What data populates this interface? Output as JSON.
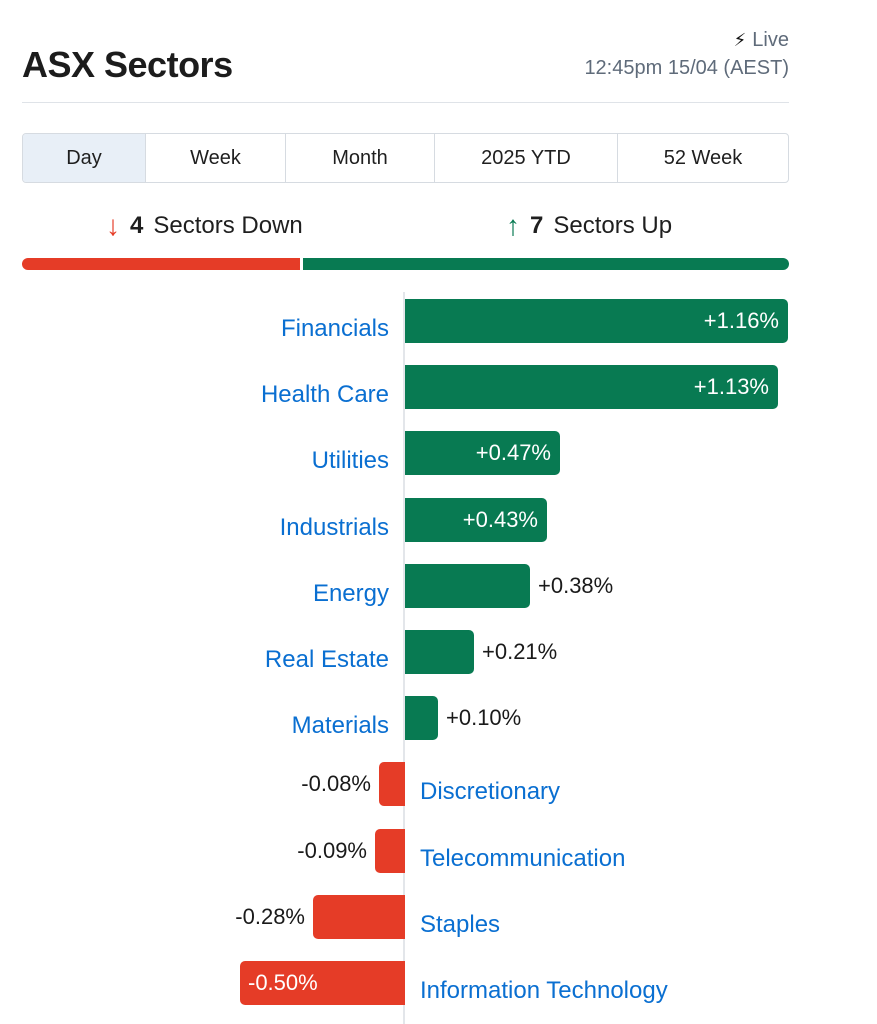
{
  "header": {
    "title": "ASX Sectors",
    "live_label": "Live",
    "timestamp": "12:45pm 15/04 (AEST)",
    "live_icon": "lightning-bolt-icon"
  },
  "tabs": [
    {
      "label": "Day",
      "active": true
    },
    {
      "label": "Week",
      "active": false
    },
    {
      "label": "Month",
      "active": false
    },
    {
      "label": "2025 YTD",
      "active": false
    },
    {
      "label": "52 Week",
      "active": false
    }
  ],
  "summary": {
    "down_count": "4",
    "down_text": "Sectors Down",
    "up_count": "7",
    "up_text": "Sectors Up"
  },
  "colors": {
    "positive": "#087a52",
    "negative": "#e53c27",
    "link": "#0a6fd1"
  },
  "chart_data": {
    "type": "bar",
    "orientation": "horizontal",
    "categories": [
      "Financials",
      "Health Care",
      "Utilities",
      "Industrials",
      "Energy",
      "Real Estate",
      "Materials",
      "Discretionary",
      "Telecommunication",
      "Staples",
      "Information Technology"
    ],
    "values": [
      1.16,
      1.13,
      0.47,
      0.43,
      0.38,
      0.21,
      0.1,
      -0.08,
      -0.09,
      -0.28,
      -0.5
    ],
    "value_labels": [
      "+1.16%",
      "+1.13%",
      "+0.47%",
      "+0.43%",
      "+0.38%",
      "+0.21%",
      "+0.10%",
      "-0.08%",
      "-0.09%",
      "-0.28%",
      "-0.50%"
    ],
    "title": "",
    "xlabel": "",
    "ylabel": "",
    "xlim": [
      -0.5,
      1.16
    ],
    "grid": false,
    "legend": "none"
  }
}
